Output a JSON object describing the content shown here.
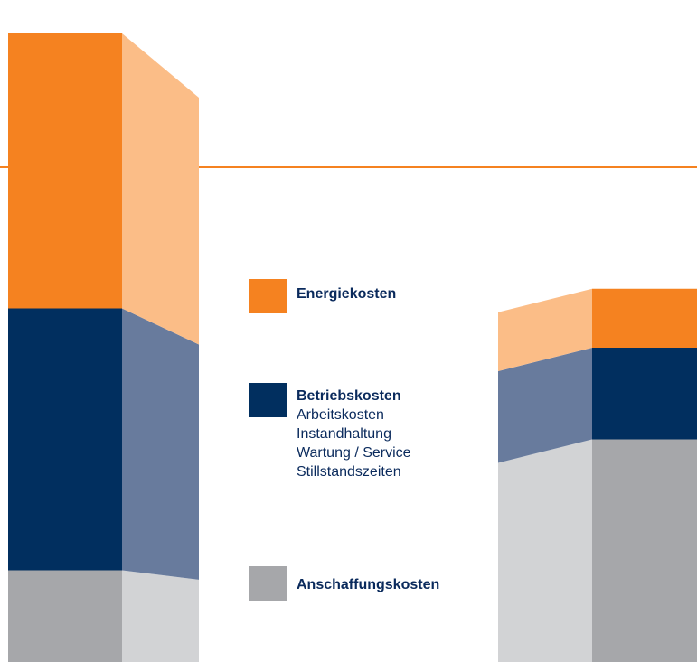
{
  "chart_data": {
    "type": "bar",
    "stacked": true,
    "categories": [
      "",
      ""
    ],
    "series": [
      {
        "name": "Anschaffungskosten",
        "values": [
          14,
          34
        ],
        "color": "#a6a7aa",
        "side_color": "#d2d3d5"
      },
      {
        "name": "Betriebskosten",
        "values": [
          40,
          14
        ],
        "color": "#012f5f",
        "side_color": "#687b9d"
      },
      {
        "name": "Energiekosten",
        "values": [
          42,
          9
        ],
        "color": "#f58220",
        "side_color": "#fbbd87"
      }
    ],
    "reference_line": {
      "value": 75,
      "color": "#f58220"
    },
    "grid": false,
    "legend_position": "center"
  },
  "legend": [
    {
      "title": "Energiekosten",
      "lines": []
    },
    {
      "title": "Betriebskosten",
      "lines": [
        "Arbeitskosten",
        "Instandhaltung",
        "Wartung / Service",
        "Stillstandszeiten"
      ]
    },
    {
      "title": "Anschaffungskosten",
      "lines": []
    }
  ]
}
